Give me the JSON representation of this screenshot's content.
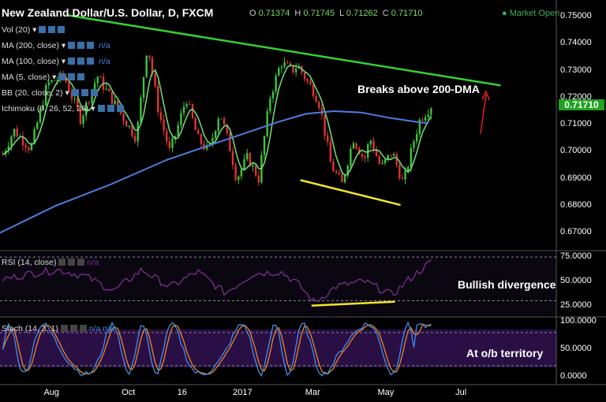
{
  "header": {
    "title": "New Zealand Dollar/U.S. Dollar, D, FXCM",
    "ohlc": [
      {
        "k": "O",
        "v": "0.71374"
      },
      {
        "k": "H",
        "v": "0.71745"
      },
      {
        "k": "L",
        "v": "0.71262"
      },
      {
        "k": "C",
        "v": "0.71710"
      }
    ],
    "market_status": "Market Open"
  },
  "indicators": [
    "Vol (20)",
    "MA (200, close)",
    "MA (100, close)",
    "MA (5, close)",
    "BB (20, close, 2)",
    "Ichimoku (9, 26, 52, 26)"
  ],
  "indicator_na": "n/a",
  "rsi_label": "RSI (14, close)",
  "rsi_na": "n/a",
  "stoch_label": "Stoch (14, 3, 1)",
  "stoch_na": "n/a  n/a",
  "annotations": {
    "breakout": "Breaks above 200-DMA",
    "divergence": "Bullish divergence",
    "overbought": "At o/b territory"
  },
  "colors": {
    "up": "#3cc43c",
    "down": "#e03434",
    "ma200": "#4a7fe0",
    "ma5": "#6fd66f",
    "trend": "#35d135",
    "support": "#f2e52a",
    "rsi": "#7d2f8f",
    "stoch_k": "#3f8fe8",
    "stoch_d": "#e8872a",
    "arrow": "#e02020",
    "last_price": "#21a321"
  },
  "chart_data": {
    "type": "candlestick",
    "price_ticks": [
      "0.75000",
      "0.74000",
      "0.73000",
      "0.72000",
      "0.71000",
      "0.70000",
      "0.69000",
      "0.68000",
      "0.67000"
    ],
    "price_range": [
      0.664,
      0.752
    ],
    "last_price": "0.71710",
    "rsi_ticks": [
      "75.0000",
      "50.0000",
      "25.0000"
    ],
    "stoch_ticks": [
      "100.0000",
      "50.0000",
      "0.0000"
    ],
    "x_labels": [
      "Aug",
      "Oct",
      "16",
      "2017",
      "Mar",
      "May",
      "Jul"
    ],
    "x_label_fracs": [
      0.09,
      0.23,
      0.33,
      0.43,
      0.56,
      0.69,
      0.83
    ],
    "price_path_fracs": [
      0,
      0.02,
      0.05,
      0.08,
      0.11,
      0.14,
      0.17,
      0.2,
      0.24,
      0.26,
      0.28,
      0.3,
      0.31,
      0.33,
      0.35,
      0.37,
      0.39,
      0.41,
      0.42,
      0.44,
      0.46,
      0.48,
      0.5,
      0.52,
      0.53,
      0.55,
      0.56,
      0.57,
      0.59,
      0.61,
      0.63,
      0.65,
      0.66,
      0.68,
      0.7,
      0.72,
      0.74,
      0.75,
      0.77
    ],
    "price_path": [
      0.699,
      0.708,
      0.701,
      0.725,
      0.728,
      0.712,
      0.728,
      0.718,
      0.705,
      0.74,
      0.715,
      0.7,
      0.706,
      0.72,
      0.705,
      0.7,
      0.715,
      0.7,
      0.69,
      0.698,
      0.69,
      0.72,
      0.733,
      0.73,
      0.732,
      0.725,
      0.722,
      0.717,
      0.695,
      0.688,
      0.705,
      0.697,
      0.705,
      0.694,
      0.7,
      0.688,
      0.705,
      0.712,
      0.717
    ],
    "ma200_fracs": [
      0,
      0.1,
      0.2,
      0.3,
      0.4,
      0.5,
      0.55,
      0.6,
      0.65,
      0.7,
      0.75,
      0.77
    ],
    "ma200": [
      0.67,
      0.68,
      0.688,
      0.697,
      0.704,
      0.711,
      0.714,
      0.715,
      0.7145,
      0.7125,
      0.711,
      0.7105
    ],
    "trendline": {
      "from": [
        0.12,
        0.7505
      ],
      "to": [
        0.9,
        0.7245
      ]
    },
    "support_line": {
      "from": [
        0.54,
        0.6895
      ],
      "to": [
        0.72,
        0.6803
      ]
    },
    "rsi_divergence_line": {
      "from": [
        0.56,
        25
      ],
      "to": [
        0.71,
        29
      ]
    },
    "rsi_path_fracs": [
      0,
      0.05,
      0.1,
      0.15,
      0.2,
      0.25,
      0.3,
      0.35,
      0.4,
      0.45,
      0.5,
      0.53,
      0.56,
      0.6,
      0.65,
      0.7,
      0.73,
      0.77
    ],
    "rsi_path": [
      52,
      58,
      62,
      55,
      40,
      62,
      44,
      60,
      38,
      58,
      60,
      48,
      28,
      45,
      50,
      36,
      52,
      70
    ]
  }
}
